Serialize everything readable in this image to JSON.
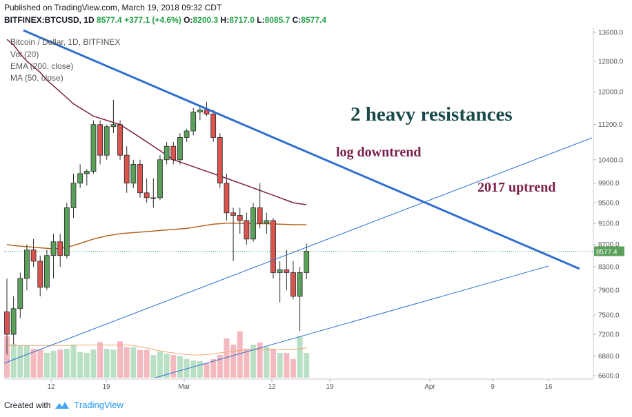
{
  "header": {
    "published": "Published on TradingView.com, March 19, 2018 09:32 CDT",
    "symbol": "BITFINEX:BTCUSD, 1D",
    "price": "8577.4",
    "change": "+377.1 (+4.6%)",
    "o_label": "O:",
    "o": "8200.3",
    "h_label": "H:",
    "h": "8717.0",
    "l_label": "L:",
    "l": "8085.7",
    "c_label": "C:",
    "c": "8577.4"
  },
  "legend": {
    "title": "Bitcoin / Dollar, 1D, BITFINEX",
    "vol": "Vol (20)",
    "ema": "EMA (200, close)",
    "ma": "MA (50, close)"
  },
  "annotations": {
    "heading": "2 heavy resistances",
    "downtrend": "log downtrend",
    "uptrend": "2017 uptrend"
  },
  "footer": {
    "created_with": "Created with",
    "brand": "TradingView"
  },
  "colors": {
    "up": "#5aa05a",
    "down": "#d9534f",
    "ema": "#b5651d",
    "ma": "#7b1f3f",
    "trend": "#2f6fd0",
    "vol_up": "#b9dfc5",
    "vol_down": "#f4b9bf",
    "vol_ma": "#f0a870"
  },
  "chart_data": {
    "type": "candlestick",
    "title": "Bitcoin / Dollar, 1D, BITFINEX",
    "scale": "log",
    "x_ticks": [
      "12",
      "19",
      "Mar",
      "12",
      "19",
      "Apr",
      "9",
      "16"
    ],
    "y_ticks": [
      "13600.0",
      "12800.0",
      "12000.0",
      "11200.0",
      "10400.0",
      "9900.0",
      "9500.0",
      "9100.0",
      "8700.0",
      "8300.0",
      "7900.0",
      "7500.0",
      "7200.0",
      "6880.0",
      "6600.0"
    ],
    "last_price": "8577.4",
    "candles": [
      {
        "o": 7550,
        "h": 8100,
        "l": 6900,
        "c": 7200
      },
      {
        "o": 7200,
        "h": 7800,
        "l": 7050,
        "c": 7600
      },
      {
        "o": 7600,
        "h": 8200,
        "l": 7450,
        "c": 8100
      },
      {
        "o": 8100,
        "h": 8700,
        "l": 7900,
        "c": 8600
      },
      {
        "o": 8600,
        "h": 8800,
        "l": 8300,
        "c": 8400
      },
      {
        "o": 8400,
        "h": 8500,
        "l": 7800,
        "c": 7950
      },
      {
        "o": 7950,
        "h": 8600,
        "l": 7900,
        "c": 8500
      },
      {
        "o": 8500,
        "h": 8900,
        "l": 8100,
        "c": 8750
      },
      {
        "o": 8750,
        "h": 8900,
        "l": 8300,
        "c": 8500
      },
      {
        "o": 8500,
        "h": 9500,
        "l": 8450,
        "c": 9400
      },
      {
        "o": 9400,
        "h": 10100,
        "l": 9200,
        "c": 9900
      },
      {
        "o": 9900,
        "h": 10300,
        "l": 9800,
        "c": 10100
      },
      {
        "o": 10100,
        "h": 10200,
        "l": 9850,
        "c": 10150
      },
      {
        "o": 10150,
        "h": 11300,
        "l": 10100,
        "c": 11200
      },
      {
        "o": 11200,
        "h": 11300,
        "l": 10300,
        "c": 10500
      },
      {
        "o": 10500,
        "h": 11200,
        "l": 10400,
        "c": 11150
      },
      {
        "o": 11150,
        "h": 11800,
        "l": 11000,
        "c": 11200
      },
      {
        "o": 11200,
        "h": 11300,
        "l": 10400,
        "c": 10500
      },
      {
        "o": 10500,
        "h": 10700,
        "l": 9700,
        "c": 9900
      },
      {
        "o": 9900,
        "h": 10400,
        "l": 9800,
        "c": 10300
      },
      {
        "o": 10300,
        "h": 10400,
        "l": 9600,
        "c": 9700
      },
      {
        "o": 9700,
        "h": 10000,
        "l": 9500,
        "c": 9600
      },
      {
        "o": 9600,
        "h": 10000,
        "l": 9400,
        "c": 9600
      },
      {
        "o": 9600,
        "h": 10500,
        "l": 9550,
        "c": 10400
      },
      {
        "o": 10400,
        "h": 10800,
        "l": 10300,
        "c": 10700
      },
      {
        "o": 10700,
        "h": 10800,
        "l": 10300,
        "c": 10400
      },
      {
        "o": 10400,
        "h": 11000,
        "l": 10300,
        "c": 10900
      },
      {
        "o": 10900,
        "h": 11100,
        "l": 10800,
        "c": 11050
      },
      {
        "o": 11050,
        "h": 11600,
        "l": 10950,
        "c": 11500
      },
      {
        "o": 11500,
        "h": 11650,
        "l": 11300,
        "c": 11550
      },
      {
        "o": 11550,
        "h": 11750,
        "l": 11400,
        "c": 11450
      },
      {
        "o": 11450,
        "h": 11550,
        "l": 10800,
        "c": 10900
      },
      {
        "o": 10900,
        "h": 11000,
        "l": 9800,
        "c": 9900
      },
      {
        "o": 9900,
        "h": 10100,
        "l": 9150,
        "c": 9300
      },
      {
        "o": 9300,
        "h": 9400,
        "l": 8400,
        "c": 9250
      },
      {
        "o": 9250,
        "h": 9400,
        "l": 8900,
        "c": 9150
      },
      {
        "o": 9150,
        "h": 9300,
        "l": 8700,
        "c": 8800
      },
      {
        "o": 8800,
        "h": 9500,
        "l": 8750,
        "c": 9400
      },
      {
        "o": 9400,
        "h": 9900,
        "l": 9000,
        "c": 9100
      },
      {
        "o": 9100,
        "h": 9300,
        "l": 8900,
        "c": 9150
      },
      {
        "o": 9150,
        "h": 9200,
        "l": 8100,
        "c": 8200
      },
      {
        "o": 8200,
        "h": 8400,
        "l": 7700,
        "c": 8250
      },
      {
        "o": 8250,
        "h": 8600,
        "l": 7900,
        "c": 8200
      },
      {
        "o": 8200,
        "h": 8400,
        "l": 7750,
        "c": 7800
      },
      {
        "o": 7800,
        "h": 8300,
        "l": 7250,
        "c": 8200
      },
      {
        "o": 8200,
        "h": 8717,
        "l": 8085.7,
        "c": 8577.4
      }
    ],
    "volume": [
      1,
      0.82,
      0.78,
      0.78,
      0.7,
      0.68,
      0.6,
      0.65,
      0.68,
      0.7,
      0.8,
      0.62,
      0.6,
      0.68,
      0.86,
      0.7,
      0.68,
      0.88,
      0.74,
      0.74,
      0.67,
      0.67,
      0.55,
      0.63,
      0.58,
      0.55,
      0.52,
      0.45,
      0.42,
      0.4,
      0.35,
      0.45,
      0.55,
      0.95,
      0.8,
      1.12,
      0.7,
      0.8,
      0.85,
      0.75,
      0.7,
      0.6,
      0.6,
      0.45,
      1.0,
      0.6
    ],
    "vol_ma": [
      0.78,
      0.78,
      0.78,
      0.78,
      0.78,
      0.78,
      0.78,
      0.78,
      0.78,
      0.78,
      0.79,
      0.79,
      0.79,
      0.79,
      0.79,
      0.79,
      0.79,
      0.79,
      0.79,
      0.78,
      0.75,
      0.72,
      0.68,
      0.65,
      0.62,
      0.6,
      0.58,
      0.56,
      0.55,
      0.55,
      0.56,
      0.58,
      0.6,
      0.62,
      0.64,
      0.66,
      0.67,
      0.68,
      0.68,
      0.68,
      0.68,
      0.68,
      0.68,
      0.68,
      0.7,
      0.72
    ],
    "ema200": [
      8700,
      8680,
      8670,
      8660,
      8650,
      8640,
      8630,
      8620,
      8630,
      8650,
      8680,
      8720,
      8760,
      8800,
      8830,
      8860,
      8880,
      8900,
      8910,
      8920,
      8930,
      8940,
      8950,
      8960,
      8970,
      8980,
      8990,
      9000,
      9020,
      9040,
      9060,
      9080,
      9090,
      9100,
      9100,
      9100,
      9090,
      9090,
      9090,
      9090,
      9085,
      9080,
      9075,
      9070,
      9070,
      9070
    ],
    "ma50": [
      13400,
      13250,
      13000,
      12800,
      12650,
      12500,
      12300,
      12150,
      12000,
      11850,
      11700,
      11600,
      11500,
      11400,
      11350,
      11300,
      11250,
      11200,
      11100,
      11000,
      10900,
      10800,
      10700,
      10600,
      10500,
      10400,
      10350,
      10300,
      10250,
      10200,
      10150,
      10100,
      10050,
      10000,
      9950,
      9900,
      9850,
      9800,
      9750,
      9700,
      9650,
      9600,
      9550,
      9500,
      9480,
      9460
    ]
  }
}
